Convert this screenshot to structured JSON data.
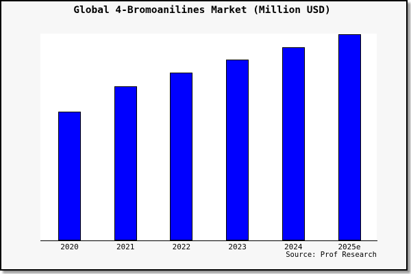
{
  "chart": {
    "title": "Global 4-Bromoanilines Market (Million USD)",
    "source_label": "Source: Prof Research",
    "colors": {
      "bar_fill": "#0000ff",
      "bar_outline": "#000000",
      "frame_background": "#f7f7f7",
      "plot_background": "#ffffff",
      "axis": "#000000",
      "text": "#000000"
    }
  },
  "chart_data": {
    "type": "bar",
    "title": "Global 4-Bromoanilines Market (Million USD)",
    "unit": "Million USD",
    "xlabel": "",
    "ylabel": "",
    "categories": [
      "2020",
      "2021",
      "2022",
      "2023",
      "2024",
      "2025e"
    ],
    "values_pct_of_max": [
      62.5,
      74.8,
      81.4,
      87.7,
      93.7,
      100.0
    ],
    "value_axis_labeled": false,
    "value_tick_labels": [],
    "grid": false,
    "legend": null,
    "annotation": "Source: Prof Research"
  }
}
